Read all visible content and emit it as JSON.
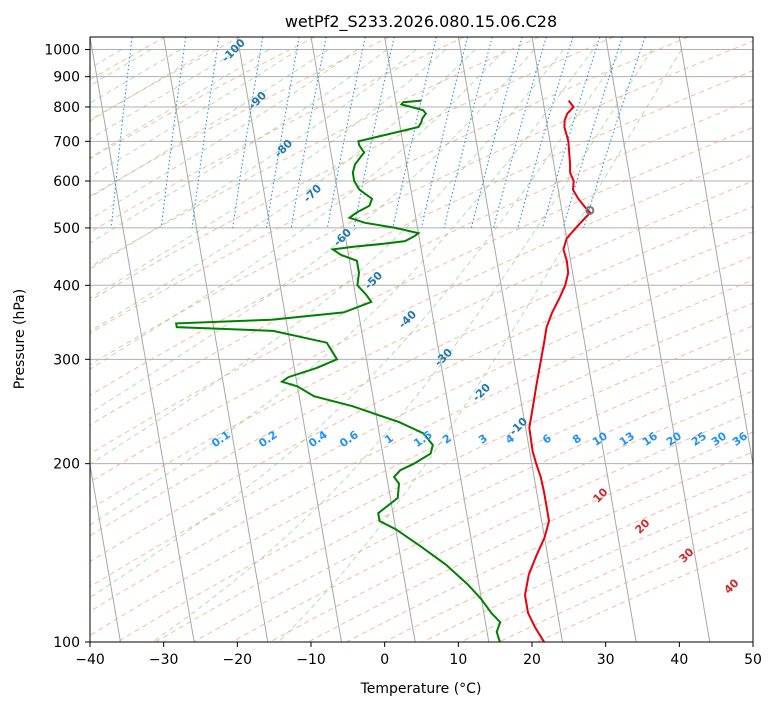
{
  "chart_data": {
    "type": "line",
    "title": "wetPf2_S233.2026.080.15.06.C28",
    "xlabel": "Temperature (°C)",
    "ylabel": "Pressure (hPa)",
    "xlim": [
      -40,
      50
    ],
    "ylim": [
      1050,
      100
    ],
    "y_scale": "log",
    "skew": true,
    "grid": true,
    "x_ticks": [
      -40,
      -30,
      -20,
      -10,
      0,
      10,
      20,
      30,
      40,
      50
    ],
    "y_ticks": [
      100,
      200,
      300,
      400,
      500,
      600,
      700,
      800,
      900,
      1000
    ],
    "series": [
      {
        "key": "temperature",
        "color": "#e8000b",
        "points": [
          [
            820,
            23.5
          ],
          [
            800,
            24.0
          ],
          [
            780,
            23.0
          ],
          [
            760,
            22.5
          ],
          [
            740,
            22.3
          ],
          [
            720,
            22.4
          ],
          [
            700,
            22.5
          ],
          [
            680,
            22.4
          ],
          [
            660,
            22.3
          ],
          [
            640,
            22.2
          ],
          [
            620,
            22.0
          ],
          [
            600,
            22.3
          ],
          [
            580,
            22.0
          ],
          [
            560,
            22.5
          ],
          [
            540,
            23.3
          ],
          [
            530,
            23.8
          ],
          [
            520,
            23.0
          ],
          [
            500,
            21.5
          ],
          [
            480,
            20.0
          ],
          [
            460,
            19.3
          ],
          [
            440,
            19.5
          ],
          [
            420,
            19.4
          ],
          [
            400,
            18.7
          ],
          [
            380,
            17.6
          ],
          [
            360,
            16.3
          ],
          [
            340,
            15.2
          ],
          [
            320,
            14.5
          ],
          [
            300,
            13.7
          ],
          [
            270,
            12.4
          ],
          [
            250,
            11.5
          ],
          [
            230,
            10.5
          ],
          [
            210,
            10.4
          ],
          [
            200,
            10.6
          ],
          [
            190,
            10.9
          ],
          [
            180,
            11.0
          ],
          [
            170,
            11.0
          ],
          [
            160,
            11.0
          ],
          [
            150,
            10.0
          ],
          [
            140,
            8.5
          ],
          [
            130,
            7.0
          ],
          [
            120,
            6.0
          ],
          [
            112,
            6.0
          ],
          [
            106,
            6.6
          ],
          [
            100,
            7.5
          ]
        ]
      },
      {
        "key": "dewpoint",
        "color": "#008000",
        "points": [
          [
            820,
            3.5
          ],
          [
            815,
            1.0
          ],
          [
            808,
            0.7
          ],
          [
            800,
            2.0
          ],
          [
            790,
            3.5
          ],
          [
            780,
            3.8
          ],
          [
            765,
            3.2
          ],
          [
            755,
            3.0
          ],
          [
            740,
            2.5
          ],
          [
            700,
            -6.0
          ],
          [
            690,
            -6.0
          ],
          [
            670,
            -5.5
          ],
          [
            660,
            -6.0
          ],
          [
            640,
            -7.0
          ],
          [
            620,
            -7.5
          ],
          [
            600,
            -7.5
          ],
          [
            580,
            -7.0
          ],
          [
            560,
            -5.5
          ],
          [
            545,
            -6.0
          ],
          [
            530,
            -8.0
          ],
          [
            520,
            -9.0
          ],
          [
            510,
            -7.0
          ],
          [
            500,
            -3.0
          ],
          [
            490,
            0.0
          ],
          [
            485,
            -0.5
          ],
          [
            475,
            -2.0
          ],
          [
            470,
            -5.0
          ],
          [
            465,
            -9.0
          ],
          [
            460,
            -12.0
          ],
          [
            450,
            -11.0
          ],
          [
            440,
            -9.0
          ],
          [
            420,
            -9.0
          ],
          [
            400,
            -9.5
          ],
          [
            385,
            -8.5
          ],
          [
            375,
            -8.0
          ],
          [
            360,
            -12.0
          ],
          [
            350,
            -22.0
          ],
          [
            345,
            -35.0
          ],
          [
            340,
            -35.0
          ],
          [
            335,
            -22.0
          ],
          [
            320,
            -15.0
          ],
          [
            300,
            -14.0
          ],
          [
            290,
            -17.0
          ],
          [
            280,
            -21.0
          ],
          [
            275,
            -22.0
          ],
          [
            270,
            -20.0
          ],
          [
            260,
            -18.0
          ],
          [
            250,
            -13.0
          ],
          [
            235,
            -7.0
          ],
          [
            225,
            -4.0
          ],
          [
            215,
            -3.0
          ],
          [
            208,
            -3.5
          ],
          [
            200,
            -6.0
          ],
          [
            195,
            -8.0
          ],
          [
            190,
            -9.0
          ],
          [
            185,
            -8.5
          ],
          [
            175,
            -9.0
          ],
          [
            165,
            -12.0
          ],
          [
            160,
            -12.0
          ],
          [
            155,
            -10.0
          ],
          [
            145,
            -7.0
          ],
          [
            135,
            -4.0
          ],
          [
            125,
            -1.5
          ],
          [
            118,
            0.0
          ],
          [
            112,
            1.0
          ],
          [
            108,
            2.0
          ],
          [
            104,
            1.3
          ],
          [
            100,
            1.5
          ]
        ]
      }
    ],
    "dry_adiabat_labels": [
      "-100",
      "-90",
      "-80",
      "-70",
      "-60",
      "-50",
      "-40",
      "-30",
      "-20",
      "-10"
    ],
    "mixing_ratio_labels": [
      "0.1",
      "0.2",
      "0.4",
      "0.6",
      "1",
      "1.5",
      "2",
      "3",
      "4",
      "6",
      "8",
      "10",
      "13",
      "16",
      "20",
      "25",
      "30",
      "36"
    ],
    "moist_adiabat_labels": [
      "10",
      "20",
      "30",
      "40"
    ],
    "lcl_marker": [
      535,
      23.8
    ]
  }
}
